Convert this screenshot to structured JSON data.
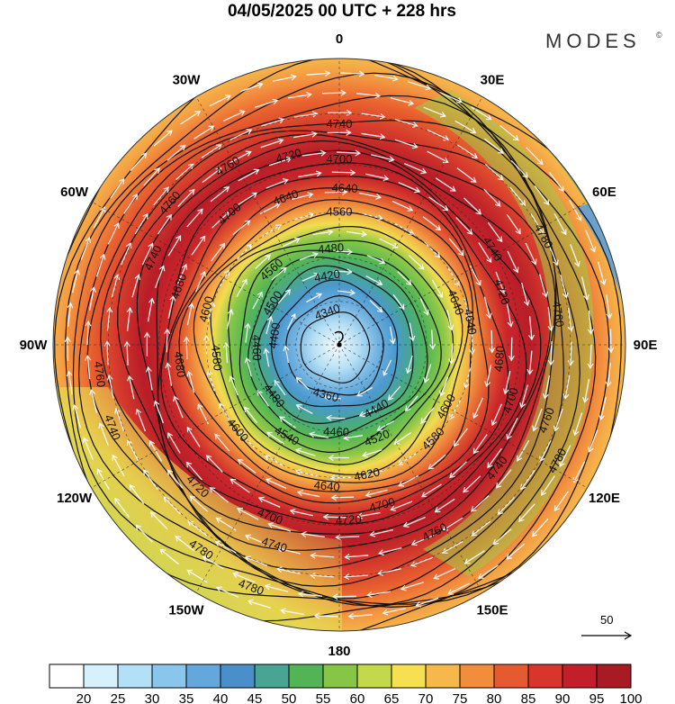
{
  "header": {
    "title": "04/05/2025  00 UTC  + 228 hrs",
    "brand": "MODES",
    "brand_mark": "©"
  },
  "map": {
    "projection": "polar-stereographic-south",
    "longitude_labels": [
      {
        "text": "0",
        "lon": 0
      },
      {
        "text": "30E",
        "lon": 30
      },
      {
        "text": "60E",
        "lon": 60
      },
      {
        "text": "90E",
        "lon": 90
      },
      {
        "text": "120E",
        "lon": 120
      },
      {
        "text": "150E",
        "lon": 150
      },
      {
        "text": "180",
        "lon": 180
      },
      {
        "text": "150W",
        "lon": -150
      },
      {
        "text": "120W",
        "lon": -120
      },
      {
        "text": "90W",
        "lon": -90
      },
      {
        "text": "60W",
        "lon": -60
      },
      {
        "text": "30W",
        "lon": -30
      }
    ],
    "contour_labels": [
      {
        "text": "4740",
        "lon": 0,
        "lat": -42
      },
      {
        "text": "4720",
        "lon": -15,
        "lat": -47
      },
      {
        "text": "4700",
        "lon": 0,
        "lat": -49
      },
      {
        "text": "4760",
        "lon": -32,
        "lat": -44
      },
      {
        "text": "4640",
        "lon": 2,
        "lat": -55
      },
      {
        "text": "4640",
        "lon": -20,
        "lat": -55
      },
      {
        "text": "4560",
        "lon": 0,
        "lat": -60
      },
      {
        "text": "4480",
        "lon": -5,
        "lat": -68
      },
      {
        "text": "4420",
        "lon": -10,
        "lat": -74
      },
      {
        "text": "4340",
        "lon": -20,
        "lat": -82
      },
      {
        "text": "4560",
        "lon": -42,
        "lat": -67
      },
      {
        "text": "4700",
        "lon": -40,
        "lat": -52
      },
      {
        "text": "4500",
        "lon": -58,
        "lat": -72
      },
      {
        "text": "4760",
        "lon": -50,
        "lat": -42
      },
      {
        "text": "4740",
        "lon": -65,
        "lat": -45
      },
      {
        "text": "4680",
        "lon": -70,
        "lat": -52
      },
      {
        "text": "4600",
        "lon": -75,
        "lat": -59
      },
      {
        "text": "4400",
        "lon": -82,
        "lat": -75
      },
      {
        "text": "4460",
        "lon": -92,
        "lat": -71
      },
      {
        "text": "4760",
        "lon": -97,
        "lat": -38
      },
      {
        "text": "4680",
        "lon": -97,
        "lat": -54
      },
      {
        "text": "4580",
        "lon": -96,
        "lat": -62
      },
      {
        "text": "4740",
        "lon": -110,
        "lat": -38
      },
      {
        "text": "4600",
        "lon": -130,
        "lat": -60
      },
      {
        "text": "4720",
        "lon": -135,
        "lat": -46
      },
      {
        "text": "4700",
        "lon": -158,
        "lat": -49
      },
      {
        "text": "4640",
        "lon": -175,
        "lat": -58
      },
      {
        "text": "4720",
        "lon": 177,
        "lat": -51
      },
      {
        "text": "4740",
        "lon": -162,
        "lat": -44
      },
      {
        "text": "4780",
        "lon": -146,
        "lat": -37
      },
      {
        "text": "4780",
        "lon": -160,
        "lat": -35
      },
      {
        "text": "4540",
        "lon": -150,
        "lat": -66
      },
      {
        "text": "4460",
        "lon": -178,
        "lat": -70
      },
      {
        "text": "4360",
        "lon": -165,
        "lat": -78
      },
      {
        "text": "4480",
        "lon": -128,
        "lat": -71
      },
      {
        "text": "4520",
        "lon": 158,
        "lat": -67
      },
      {
        "text": "4440",
        "lon": 150,
        "lat": -73
      },
      {
        "text": "4620",
        "lon": 168,
        "lat": -60
      },
      {
        "text": "4700",
        "lon": 165,
        "lat": -53
      },
      {
        "text": "4760",
        "lon": 153,
        "lat": -44
      },
      {
        "text": "4580",
        "lon": 135,
        "lat": -60
      },
      {
        "text": "4600",
        "lon": 120,
        "lat": -62
      },
      {
        "text": "4740",
        "lon": 128,
        "lat": -46
      },
      {
        "text": "4780",
        "lon": 118,
        "lat": -37
      },
      {
        "text": "4760",
        "lon": 110,
        "lat": -42
      },
      {
        "text": "4700",
        "lon": 108,
        "lat": -50
      },
      {
        "text": "4680",
        "lon": 95,
        "lat": -54
      },
      {
        "text": "4640",
        "lon": 80,
        "lat": -60
      },
      {
        "text": "4640",
        "lon": 70,
        "lat": -62
      },
      {
        "text": "4720",
        "lon": 72,
        "lat": -52
      },
      {
        "text": "4740",
        "lon": 58,
        "lat": -50
      },
      {
        "text": "4760",
        "lon": 82,
        "lat": -42
      },
      {
        "text": "4780",
        "lon": 62,
        "lat": -40
      }
    ],
    "vector_scale": {
      "label": "50",
      "value": 50
    }
  },
  "colorbar": {
    "levels": [
      20,
      25,
      30,
      35,
      40,
      45,
      50,
      55,
      60,
      65,
      70,
      75,
      80,
      85,
      90,
      95,
      100
    ],
    "labels": [
      "20",
      "25",
      "30",
      "35",
      "40",
      "45",
      "50",
      "55",
      "60",
      "65",
      "70",
      "75",
      "80",
      "85",
      "90",
      "95",
      "100"
    ],
    "colors": [
      "#ffffff",
      "#d6f0fc",
      "#b2e0f6",
      "#8ac6ec",
      "#63a7dc",
      "#4a8fc9",
      "#48a493",
      "#52b455",
      "#86c545",
      "#c3d84a",
      "#f6e051",
      "#f7b84b",
      "#f28d3b",
      "#e65a30",
      "#d8352c",
      "#c21f2a",
      "#a81a24"
    ]
  }
}
